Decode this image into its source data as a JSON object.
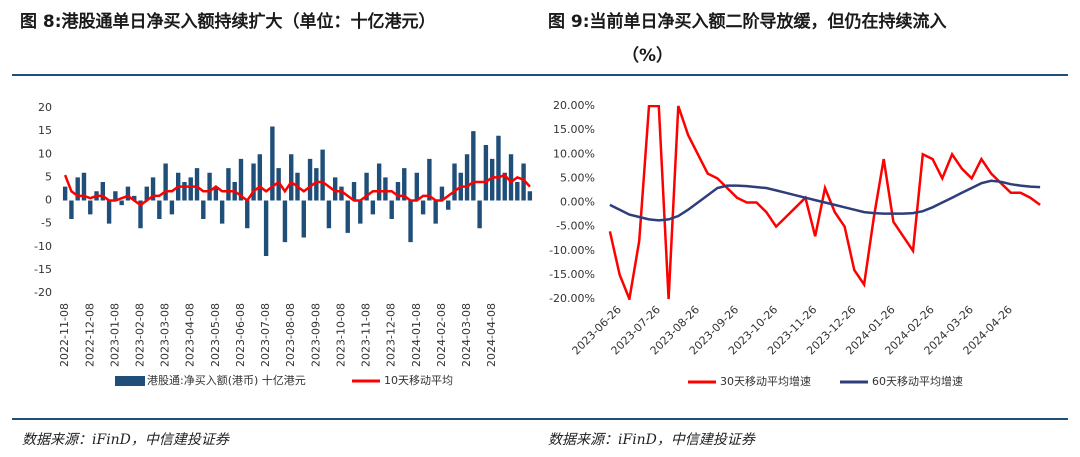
{
  "chart_data": [
    {
      "type": "bar",
      "title": "图 8:港股通单日净买入额持续扩大（单位：十亿港元）",
      "categories": [
        "2022-11-08",
        null,
        null,
        null,
        "2022-12-08",
        null,
        null,
        null,
        "2023-01-08",
        null,
        null,
        null,
        "2023-02-08",
        null,
        null,
        null,
        "2023-03-08",
        null,
        null,
        null,
        "2023-04-08",
        null,
        null,
        null,
        "2023-05-08",
        null,
        null,
        null,
        "2023-06-08",
        null,
        null,
        null,
        "2023-07-08",
        null,
        null,
        null,
        "2023-08-08",
        null,
        null,
        null,
        "2023-09-08",
        null,
        null,
        null,
        "2023-10-08",
        null,
        null,
        null,
        "2023-11-08",
        null,
        null,
        null,
        "2023-12-08",
        null,
        null,
        null,
        "2024-01-08",
        null,
        null,
        null,
        "2024-02-08",
        null,
        null,
        null,
        "2024-03-08",
        null,
        null,
        null,
        "2024-04-08",
        null,
        null,
        null,
        null,
        null,
        null
      ],
      "series": [
        {
          "name": "港股通:净买入额(港币) 十亿港元",
          "type": "bar",
          "color": "#1f4e79",
          "values": [
            3,
            -4,
            5,
            6,
            -3,
            2,
            4,
            -5,
            2,
            -1,
            3,
            1,
            -6,
            3,
            5,
            -4,
            8,
            -3,
            6,
            4,
            5,
            7,
            -4,
            6,
            3,
            -5,
            7,
            4,
            9,
            -6,
            8,
            10,
            -12,
            16,
            7,
            -9,
            10,
            6,
            -8,
            9,
            7,
            11,
            -6,
            5,
            3,
            -7,
            4,
            -5,
            6,
            -3,
            8,
            5,
            -4,
            4,
            7,
            -9,
            6,
            -3,
            9,
            -5,
            3,
            -2,
            8,
            6,
            10,
            15,
            -6,
            12,
            9,
            14,
            6,
            10,
            4,
            8,
            2
          ]
        },
        {
          "name": "10天移动平均",
          "type": "line",
          "color": "#ff0000",
          "values": [
            5.5,
            2,
            1,
            1,
            0.5,
            1,
            1,
            0,
            0,
            0.5,
            1,
            0,
            -1,
            0,
            1,
            1,
            2,
            2,
            3,
            3,
            3,
            3,
            2,
            2,
            3,
            2,
            2,
            2,
            1,
            0,
            2,
            3,
            2,
            3,
            4,
            2,
            4,
            3,
            2,
            3,
            4,
            4,
            3,
            2,
            2,
            1,
            0,
            0,
            1,
            2,
            2,
            2,
            2,
            1,
            1,
            0,
            0,
            1,
            1,
            0,
            0,
            1,
            2,
            3,
            3,
            4,
            4,
            4,
            5,
            5,
            5.5,
            4,
            5,
            4.5,
            3
          ]
        }
      ],
      "ylim": [
        -20,
        20
      ],
      "yticks": [
        -20,
        -15,
        -10,
        -5,
        0,
        5,
        10,
        15,
        20
      ],
      "source": "数据来源：iFinD，中信建投证券"
    },
    {
      "type": "line",
      "title": [
        "图 9:当前单日净买入额二阶导放缓，但仍在持续流入",
        "（%）"
      ],
      "categories": [
        null,
        "2023-06-26",
        null,
        null,
        null,
        "2023-07-26",
        null,
        null,
        null,
        "2023-08-26",
        null,
        null,
        null,
        "2023-09-26",
        null,
        null,
        null,
        "2023-10-26",
        null,
        null,
        null,
        "2023-11-26",
        null,
        null,
        null,
        "2023-12-26",
        null,
        null,
        null,
        "2024-01-26",
        null,
        null,
        null,
        "2024-02-26",
        null,
        null,
        null,
        "2024-03-26",
        null,
        null,
        null,
        "2024-04-26",
        null,
        null,
        null
      ],
      "series": [
        {
          "name": "30天移动平均增速",
          "color": "#ff0000",
          "values": [
            -6,
            -15,
            -20,
            -8,
            20,
            20,
            -20,
            20,
            14,
            10,
            6,
            5,
            3,
            1,
            0,
            0,
            -2,
            -5,
            -3,
            -1,
            1,
            -7,
            3,
            -2,
            -5,
            -14,
            -17,
            -3,
            9,
            -4,
            -7,
            -10,
            10,
            9,
            5,
            10,
            7,
            5,
            9,
            6,
            4,
            2,
            2,
            1,
            -0.5
          ]
        },
        {
          "name": "60天移动平均增速",
          "color": "#2f3d7a",
          "values": [
            -0.5,
            -1.5,
            -2.5,
            -3,
            -3.5,
            -3.7,
            -3.5,
            -2.8,
            -1.5,
            0,
            1.5,
            3,
            3.5,
            3.5,
            3.4,
            3.2,
            3,
            2.5,
            2,
            1.5,
            1,
            0.5,
            0,
            -0.5,
            -1,
            -1.5,
            -2,
            -2.2,
            -2.3,
            -2.3,
            -2.3,
            -2.2,
            -1.8,
            -1,
            0,
            1,
            2,
            3,
            4,
            4.5,
            4.3,
            3.8,
            3.5,
            3.3,
            3.2
          ]
        }
      ],
      "ylim": [
        -20,
        20
      ],
      "yticks": [
        {
          "value": -20,
          "label": "-20.00%"
        },
        {
          "value": -15,
          "label": "-15.00%"
        },
        {
          "value": -10,
          "label": "-10.00%"
        },
        {
          "value": -5,
          "label": "-5.00%"
        },
        {
          "value": 0,
          "label": "0.00%"
        },
        {
          "value": 5,
          "label": "5.00%"
        },
        {
          "value": 10,
          "label": "10.00%"
        },
        {
          "value": 15,
          "label": "15.00%"
        },
        {
          "value": 20,
          "label": "20.00%"
        }
      ],
      "source": "数据来源：iFinD，中信建投证券"
    }
  ]
}
